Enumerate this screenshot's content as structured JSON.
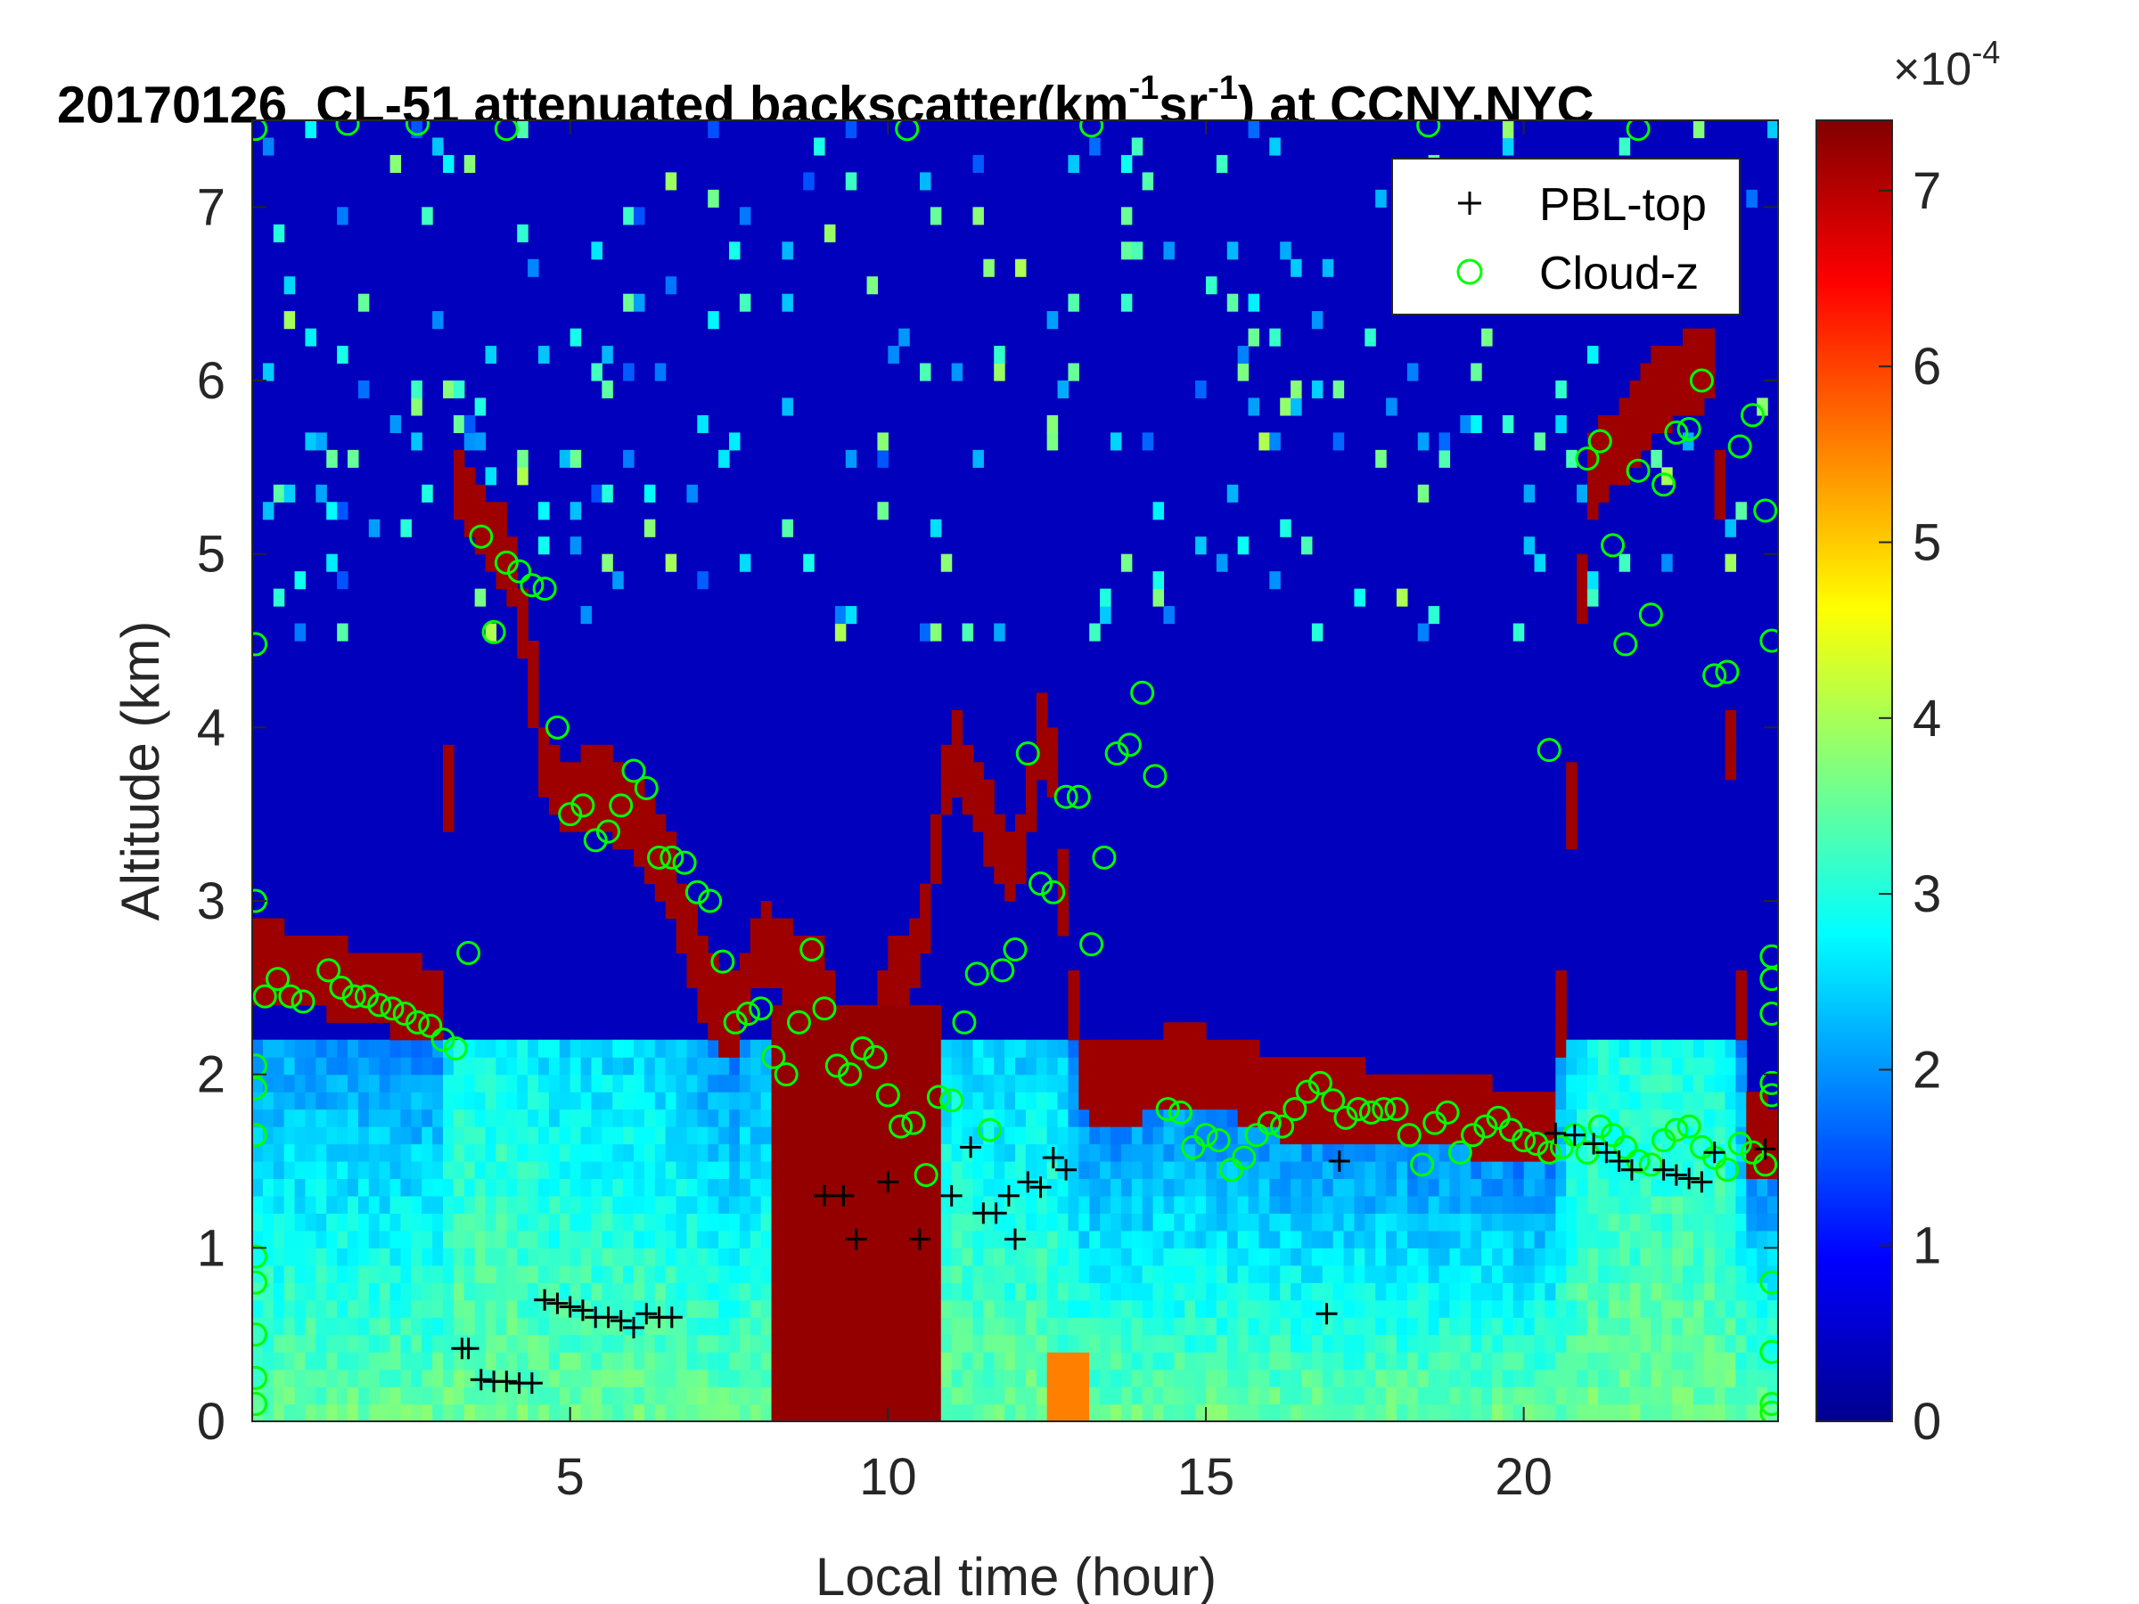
{
  "chart_data": {
    "type": "heatmap",
    "title": {
      "date": "20170126",
      "prefix": "CL-51 attenuated backscatter(km",
      "exp1": "-1",
      "mid": "sr",
      "exp2": "-1",
      "suffix": ") at CCNY,NYC"
    },
    "xlabel": "Local time (hour)",
    "ylabel": "Altitude (km)",
    "xlim": [
      0,
      24
    ],
    "ylim": [
      0,
      7.5
    ],
    "xticks": [
      5,
      10,
      15,
      20
    ],
    "yticks": [
      0,
      1,
      2,
      3,
      4,
      5,
      6,
      7
    ],
    "colorbar": {
      "range": [
        0,
        7.4
      ],
      "ticks": [
        0,
        1,
        2,
        3,
        4,
        5,
        6,
        7
      ],
      "multiplier_base": "×10",
      "multiplier_exp": "-4",
      "colormap": "jet"
    },
    "legend": {
      "placement": "top-right",
      "entries": [
        {
          "name": "PBL-top",
          "marker": "+",
          "color": "#000000"
        },
        {
          "name": "Cloud-z",
          "marker": "o",
          "color": "#00ff00"
        }
      ]
    },
    "cloud_base_km": [
      [
        0,
        2.45
      ],
      [
        0.5,
        2.4
      ],
      [
        1,
        2.38
      ],
      [
        1.5,
        2.3
      ],
      [
        2,
        2.27
      ],
      [
        2.5,
        2.22
      ],
      [
        3,
        2.15
      ],
      [
        3.2,
        5.2
      ],
      [
        3.6,
        4.95
      ],
      [
        4,
        4.8
      ],
      [
        4.3,
        4.3
      ],
      [
        4.6,
        3.55
      ],
      [
        5,
        3.35
      ],
      [
        5.5,
        3.45
      ],
      [
        6,
        3.25
      ],
      [
        6.5,
        3.0
      ],
      [
        7,
        2.4
      ],
      [
        7.5,
        2.05
      ],
      [
        8,
        2.55
      ],
      [
        8.5,
        2.4
      ],
      [
        9,
        2.3
      ],
      [
        9.5,
        1.6
      ],
      [
        10,
        2.3
      ],
      [
        10.5,
        2.5
      ],
      [
        11,
        3.7
      ],
      [
        11.5,
        3.3
      ],
      [
        12,
        2.9
      ],
      [
        12.5,
        3.9
      ],
      [
        13,
        1.8
      ],
      [
        13.5,
        1.7
      ],
      [
        14,
        1.75
      ],
      [
        14.5,
        1.85
      ],
      [
        15,
        1.8
      ],
      [
        15.5,
        1.75
      ],
      [
        16,
        1.68
      ],
      [
        16.5,
        1.6
      ],
      [
        17,
        1.65
      ],
      [
        17.5,
        1.6
      ],
      [
        18,
        1.58
      ],
      [
        18.5,
        1.55
      ],
      [
        19,
        1.56
      ],
      [
        19.5,
        1.5
      ],
      [
        20,
        1.45
      ],
      [
        20.5,
        1.5
      ],
      [
        21,
        5.2
      ],
      [
        21.5,
        5.4
      ],
      [
        22,
        5.7
      ],
      [
        22.5,
        5.8
      ],
      [
        23,
        5.9
      ],
      [
        23.5,
        1.42
      ],
      [
        23.9,
        1.4
      ]
    ],
    "series": [
      {
        "name": "PBL-top",
        "points": [
          [
            3.3,
            0.42
          ],
          [
            3.4,
            0.42
          ],
          [
            3.6,
            0.24
          ],
          [
            3.8,
            0.23
          ],
          [
            4.0,
            0.23
          ],
          [
            4.2,
            0.22
          ],
          [
            4.4,
            0.22
          ],
          [
            4.6,
            0.7
          ],
          [
            4.8,
            0.68
          ],
          [
            5.0,
            0.66
          ],
          [
            5.2,
            0.64
          ],
          [
            5.4,
            0.6
          ],
          [
            5.6,
            0.6
          ],
          [
            5.8,
            0.58
          ],
          [
            6.0,
            0.54
          ],
          [
            6.2,
            0.62
          ],
          [
            6.4,
            0.6
          ],
          [
            6.6,
            0.6
          ],
          [
            9.0,
            1.3
          ],
          [
            9.3,
            1.3
          ],
          [
            9.5,
            1.05
          ],
          [
            10.0,
            1.38
          ],
          [
            10.5,
            1.05
          ],
          [
            11.0,
            1.3
          ],
          [
            11.3,
            1.58
          ],
          [
            11.5,
            1.2
          ],
          [
            11.7,
            1.2
          ],
          [
            11.9,
            1.3
          ],
          [
            12.0,
            1.05
          ],
          [
            12.2,
            1.38
          ],
          [
            12.4,
            1.35
          ],
          [
            12.6,
            1.52
          ],
          [
            12.8,
            1.45
          ],
          [
            16.9,
            0.62
          ],
          [
            17.1,
            1.5
          ],
          [
            20.5,
            1.66
          ],
          [
            20.8,
            1.65
          ],
          [
            21.1,
            1.6
          ],
          [
            21.3,
            1.55
          ],
          [
            21.5,
            1.5
          ],
          [
            21.7,
            1.45
          ],
          [
            22.2,
            1.45
          ],
          [
            22.4,
            1.42
          ],
          [
            22.6,
            1.4
          ],
          [
            22.8,
            1.38
          ],
          [
            23.0,
            1.55
          ],
          [
            23.8,
            1.57
          ]
        ]
      },
      {
        "name": "Cloud-z",
        "points": [
          [
            0.2,
            2.45
          ],
          [
            0.4,
            2.55
          ],
          [
            0.6,
            2.45
          ],
          [
            0.8,
            2.42
          ],
          [
            1.2,
            2.6
          ],
          [
            1.4,
            2.5
          ],
          [
            1.6,
            2.45
          ],
          [
            1.8,
            2.45
          ],
          [
            2.0,
            2.4
          ],
          [
            2.2,
            2.38
          ],
          [
            2.4,
            2.35
          ],
          [
            2.6,
            2.3
          ],
          [
            2.8,
            2.28
          ],
          [
            3.0,
            2.2
          ],
          [
            3.2,
            2.15
          ],
          [
            3.4,
            2.7
          ],
          [
            3.6,
            5.1
          ],
          [
            3.8,
            4.55
          ],
          [
            4.0,
            4.95
          ],
          [
            4.2,
            4.9
          ],
          [
            4.4,
            4.82
          ],
          [
            4.6,
            4.8
          ],
          [
            4.8,
            4.0
          ],
          [
            5.0,
            3.5
          ],
          [
            5.2,
            3.55
          ],
          [
            5.4,
            3.35
          ],
          [
            5.6,
            3.4
          ],
          [
            5.8,
            3.55
          ],
          [
            6.0,
            3.75
          ],
          [
            6.2,
            3.65
          ],
          [
            6.4,
            3.25
          ],
          [
            6.6,
            3.25
          ],
          [
            6.8,
            3.22
          ],
          [
            7.0,
            3.05
          ],
          [
            7.2,
            3.0
          ],
          [
            7.4,
            2.65
          ],
          [
            7.6,
            2.3
          ],
          [
            7.8,
            2.35
          ],
          [
            8.0,
            2.38
          ],
          [
            8.2,
            2.1
          ],
          [
            8.4,
            2.0
          ],
          [
            8.6,
            2.3
          ],
          [
            8.8,
            2.72
          ],
          [
            9.0,
            2.38
          ],
          [
            9.2,
            2.05
          ],
          [
            9.4,
            2.0
          ],
          [
            9.6,
            2.15
          ],
          [
            9.8,
            2.1
          ],
          [
            10.0,
            1.88
          ],
          [
            10.2,
            1.7
          ],
          [
            10.4,
            1.72
          ],
          [
            10.6,
            1.42
          ],
          [
            10.8,
            1.87
          ],
          [
            11.0,
            1.85
          ],
          [
            11.2,
            2.3
          ],
          [
            11.4,
            2.58
          ],
          [
            11.6,
            1.68
          ],
          [
            11.8,
            2.6
          ],
          [
            12.0,
            2.72
          ],
          [
            12.2,
            3.85
          ],
          [
            12.4,
            3.1
          ],
          [
            12.6,
            3.05
          ],
          [
            12.8,
            3.6
          ],
          [
            13.0,
            3.6
          ],
          [
            13.2,
            2.75
          ],
          [
            13.4,
            3.25
          ],
          [
            13.6,
            3.85
          ],
          [
            13.8,
            3.9
          ],
          [
            14.0,
            4.2
          ],
          [
            14.2,
            3.72
          ],
          [
            14.4,
            1.8
          ],
          [
            14.6,
            1.78
          ],
          [
            14.8,
            1.58
          ],
          [
            15.0,
            1.65
          ],
          [
            15.2,
            1.62
          ],
          [
            15.4,
            1.45
          ],
          [
            15.6,
            1.52
          ],
          [
            15.8,
            1.65
          ],
          [
            16.0,
            1.72
          ],
          [
            16.2,
            1.7
          ],
          [
            16.4,
            1.8
          ],
          [
            16.6,
            1.9
          ],
          [
            16.8,
            1.95
          ],
          [
            17.0,
            1.85
          ],
          [
            17.2,
            1.75
          ],
          [
            17.4,
            1.8
          ],
          [
            17.6,
            1.78
          ],
          [
            17.8,
            1.8
          ],
          [
            18.0,
            1.8
          ],
          [
            18.2,
            1.65
          ],
          [
            18.4,
            1.48
          ],
          [
            18.6,
            1.72
          ],
          [
            18.8,
            1.78
          ],
          [
            19.0,
            1.55
          ],
          [
            19.2,
            1.65
          ],
          [
            19.4,
            1.7
          ],
          [
            19.6,
            1.75
          ],
          [
            19.8,
            1.68
          ],
          [
            20.0,
            1.62
          ],
          [
            20.2,
            1.6
          ],
          [
            20.4,
            1.55
          ],
          [
            20.6,
            1.58
          ],
          [
            20.8,
            1.65
          ],
          [
            21.0,
            1.55
          ],
          [
            21.2,
            1.7
          ],
          [
            21.4,
            1.65
          ],
          [
            21.6,
            1.58
          ],
          [
            21.8,
            1.5
          ],
          [
            22.0,
            1.48
          ],
          [
            22.2,
            1.62
          ],
          [
            22.4,
            1.68
          ],
          [
            22.6,
            1.7
          ],
          [
            22.8,
            1.58
          ],
          [
            23.0,
            1.52
          ],
          [
            23.2,
            1.45
          ],
          [
            23.4,
            1.6
          ],
          [
            23.6,
            1.55
          ],
          [
            23.8,
            1.48
          ],
          [
            20.4,
            3.87
          ],
          [
            21.0,
            5.55
          ],
          [
            21.2,
            5.65
          ],
          [
            21.4,
            5.05
          ],
          [
            21.6,
            4.48
          ],
          [
            21.8,
            5.48
          ],
          [
            22.0,
            4.65
          ],
          [
            22.2,
            5.4
          ],
          [
            22.4,
            5.7
          ],
          [
            22.6,
            5.72
          ],
          [
            22.8,
            6.0
          ],
          [
            23.0,
            4.3
          ],
          [
            23.2,
            4.32
          ],
          [
            23.4,
            5.62
          ],
          [
            23.6,
            5.8
          ],
          [
            23.8,
            5.25
          ],
          [
            0.05,
            7.45
          ],
          [
            1.5,
            7.48
          ],
          [
            2.6,
            7.48
          ],
          [
            4.0,
            7.45
          ],
          [
            10.3,
            7.45
          ],
          [
            13.2,
            7.47
          ],
          [
            18.5,
            7.47
          ],
          [
            21.8,
            7.45
          ],
          [
            0.05,
            4.48
          ],
          [
            0.05,
            3.0
          ],
          [
            0.05,
            2.05
          ],
          [
            0.05,
            1.92
          ],
          [
            0.05,
            1.65
          ],
          [
            0.05,
            0.95
          ],
          [
            0.05,
            0.8
          ],
          [
            0.05,
            0.5
          ],
          [
            0.05,
            0.25
          ],
          [
            0.05,
            0.1
          ],
          [
            23.9,
            4.5
          ],
          [
            23.9,
            2.68
          ],
          [
            23.9,
            2.55
          ],
          [
            23.9,
            2.35
          ],
          [
            23.9,
            1.95
          ],
          [
            23.9,
            1.88
          ],
          [
            23.9,
            0.8
          ],
          [
            23.9,
            0.4
          ],
          [
            23.9,
            0.1
          ],
          [
            23.9,
            0.05
          ]
        ]
      }
    ]
  }
}
